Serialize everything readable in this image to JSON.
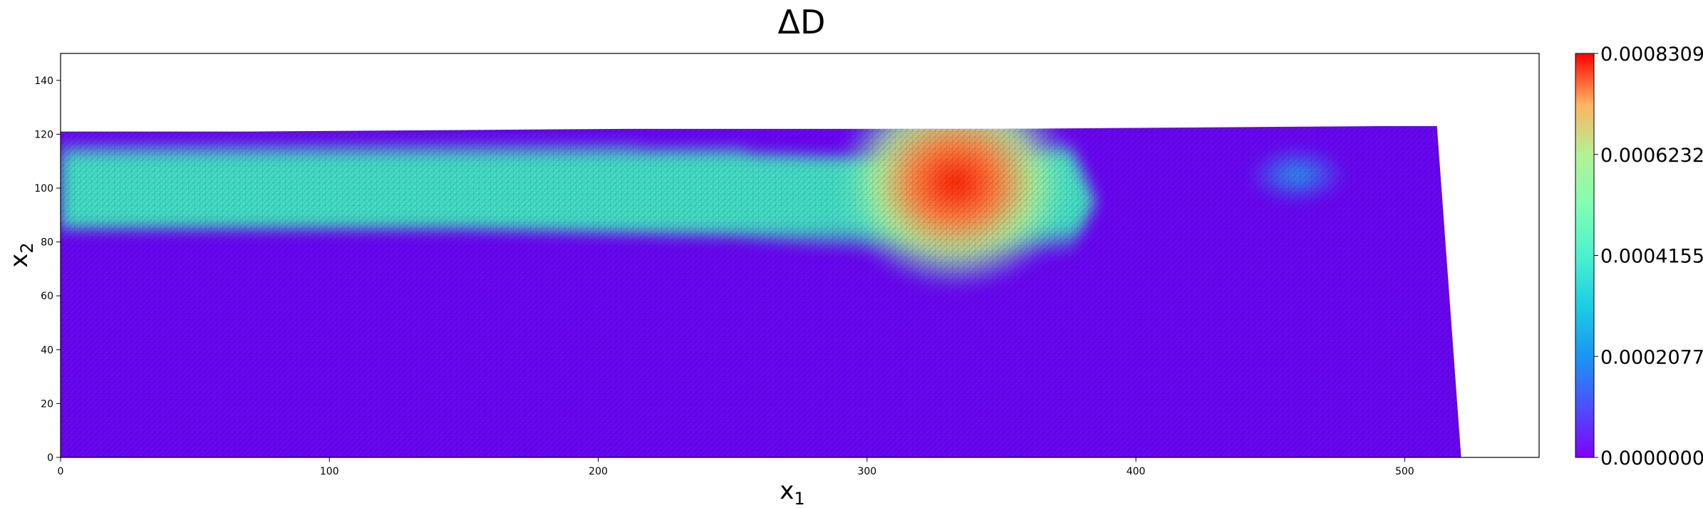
{
  "chart_data": {
    "type": "heatmap",
    "title": "ΔD",
    "xlabel": "x",
    "xlabel_subscript": "1",
    "ylabel": "x",
    "ylabel_subscript": "2",
    "xlim": [
      0,
      550
    ],
    "ylim": [
      0,
      150
    ],
    "xticks": [
      0,
      100,
      200,
      300,
      400,
      500
    ],
    "yticks": [
      0,
      20,
      40,
      60,
      80,
      100,
      120,
      140
    ],
    "colormap": "rainbow",
    "colorbar": {
      "min": 0.0,
      "max": 0.0008309,
      "ticks": [
        "0.0000000",
        "0.0002077",
        "0.0004155",
        "0.0006232",
        "0.0008309"
      ]
    },
    "domain_boundary": {
      "top_surface": [
        [
          0,
          121
        ],
        [
          70,
          121
        ],
        [
          140,
          121.5
        ],
        [
          210,
          122
        ],
        [
          280,
          122
        ],
        [
          350,
          122
        ],
        [
          420,
          122.5
        ],
        [
          490,
          123
        ],
        [
          512,
          123
        ]
      ],
      "right_edge": [
        [
          512,
          123
        ],
        [
          521,
          0
        ]
      ]
    },
    "field_regions": [
      {
        "description": "elevated band",
        "x_range": [
          0,
          375
        ],
        "y_range": [
          85,
          116
        ],
        "value": 0.00038
      },
      {
        "description": "peak",
        "x": 333,
        "y": 102,
        "value": 0.00083
      },
      {
        "description": "secondary blob",
        "x": 460,
        "y": 105,
        "value": 0.00025
      }
    ],
    "grid": false
  }
}
